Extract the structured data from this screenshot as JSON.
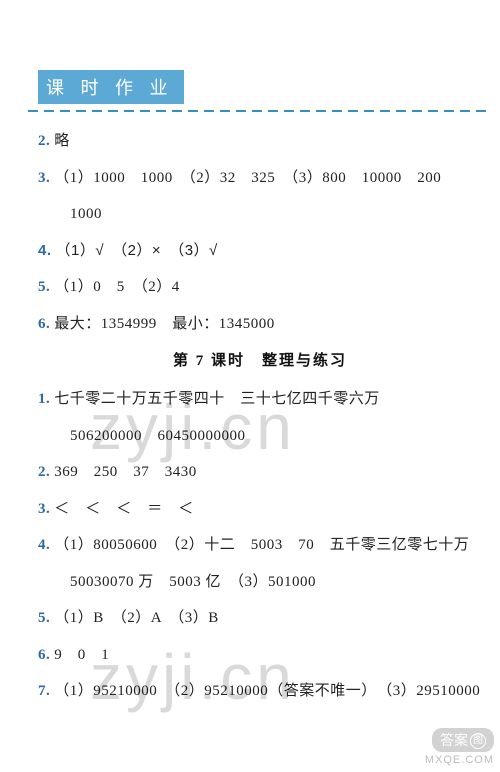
{
  "header": {
    "title": "课 时 作 业"
  },
  "colors": {
    "header_bg": "#5da9d6",
    "header_text": "#ffffff",
    "number": "#2d6aa3",
    "text": "#222222",
    "dash": "#3a8cc4",
    "watermark": "rgba(0,0,0,0.15)"
  },
  "block1": {
    "l2": {
      "n": "2.",
      "t": "略"
    },
    "l3": {
      "n": "3.",
      "t": "（1）1000　1000　（2）32　325　（3）800　10000　200"
    },
    "l3b": {
      "t": "1000"
    },
    "l4": {
      "n": "4.",
      "t": "（1）√　（2）×　（3）√"
    },
    "l5": {
      "n": "5.",
      "t": "（1）0　5　（2）4"
    },
    "l6": {
      "n": "6.",
      "t": "最大：1354999　最小：1345000"
    }
  },
  "lesson_title": "第 7 课时　整理与练习",
  "block2": {
    "l1": {
      "n": "1.",
      "t": "七千零二十万五千零四十　三十七亿四千零六万"
    },
    "l1b": {
      "t": "506200000　60450000000"
    },
    "l2": {
      "n": "2.",
      "t": "369　250　37　3430"
    },
    "l3": {
      "n": "3.",
      "t": "＜　＜　＜　＝　＜"
    },
    "l4": {
      "n": "4.",
      "t": "（1）80050600　（2）十二　5003　70　五千零三亿零七十万"
    },
    "l4b": {
      "t": "50030070 万　5003 亿　（3）501000"
    },
    "l5": {
      "n": "5.",
      "t": "（1）B　（2）A　（3）B"
    },
    "l6": {
      "n": "6.",
      "t": "9　0　1"
    },
    "l7": {
      "n": "7.",
      "t": "（1）95210000　（2）95210000（答案不唯一）　（3）29510000"
    }
  },
  "watermark": {
    "text": "zyji.cn"
  },
  "footer": {
    "top": "答案",
    "circle": "图",
    "bottom": "MXQE.COM"
  }
}
